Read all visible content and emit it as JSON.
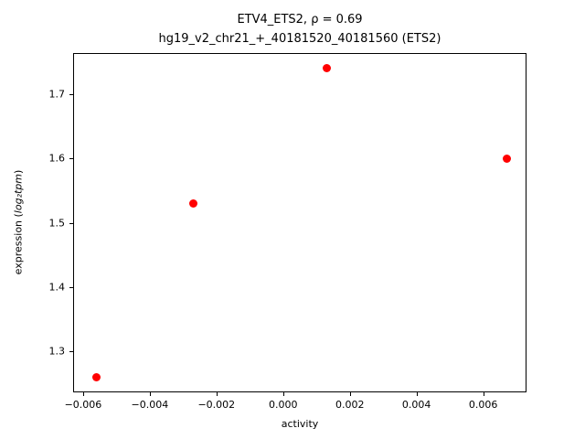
{
  "figure": {
    "title_line1": "ETV4_ETS2, ρ = 0.69",
    "title_line2": "hg19_v2_chr21_+_40181520_40181560 (ETS2)",
    "xlabel": "activity",
    "ylabel_prefix": "expression (",
    "ylabel_math": "log₂tpm",
    "ylabel_suffix": ")"
  },
  "chart_data": {
    "type": "scatter",
    "title": "ETV4_ETS2, ρ = 0.69",
    "subtitle": "hg19_v2_chr21_+_40181520_40181560 (ETS2)",
    "xlabel": "activity",
    "ylabel": "expression (log₂tpm)",
    "marker_color": "#ff0000",
    "grid": false,
    "legend": null,
    "xlim": [
      -0.0063,
      0.0073
    ],
    "ylim": [
      1.236,
      1.764
    ],
    "points": [
      {
        "x": -0.0056,
        "y": 1.26
      },
      {
        "x": -0.0027,
        "y": 1.53
      },
      {
        "x": 0.0013,
        "y": 1.74
      },
      {
        "x": 0.0067,
        "y": 1.6
      }
    ],
    "xticks": {
      "values": [
        -0.006,
        -0.004,
        -0.002,
        0.0,
        0.002,
        0.004,
        0.006
      ],
      "labels": [
        "−0.006",
        "−0.004",
        "−0.002",
        "0.000",
        "0.002",
        "0.004",
        "0.006"
      ]
    },
    "yticks": {
      "values": [
        1.3,
        1.4,
        1.5,
        1.6,
        1.7
      ],
      "labels": [
        "1.3",
        "1.4",
        "1.5",
        "1.6",
        "1.7"
      ]
    }
  }
}
